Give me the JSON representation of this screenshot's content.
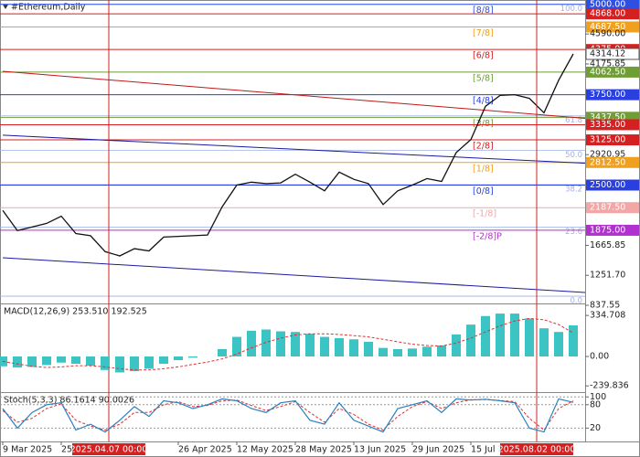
{
  "chart_data": [
    {
      "type": "line",
      "title": "#Ethereum,Daily",
      "x": [
        "2025-03-09",
        "2025-03-13",
        "2025-03-17",
        "2025-03-21",
        "2025-03-25",
        "2025-03-29",
        "2025-04-02",
        "2025-04-06",
        "2025-04-10",
        "2025-04-14",
        "2025-04-18",
        "2025-04-22",
        "2025-04-26",
        "2025-04-30",
        "2025-05-04",
        "2025-05-08",
        "2025-05-12",
        "2025-05-16",
        "2025-05-20",
        "2025-05-24",
        "2025-05-28",
        "2025-06-01",
        "2025-06-05",
        "2025-06-09",
        "2025-06-13",
        "2025-06-17",
        "2025-06-21",
        "2025-06-25",
        "2025-06-29",
        "2025-07-03",
        "2025-07-07",
        "2025-07-11",
        "2025-07-15",
        "2025-07-19",
        "2025-07-23",
        "2025-07-27",
        "2025-07-31",
        "2025-08-04",
        "2025-08-08",
        "2025-08-12"
      ],
      "series": [
        {
          "color": "#111111",
          "values": [
            2150,
            1870,
            1920,
            1970,
            2070,
            1830,
            1800,
            1580,
            1520,
            1620,
            1590,
            1780,
            1790,
            1800,
            1810,
            2200,
            2500,
            2540,
            2520,
            2530,
            2650,
            2540,
            2420,
            2680,
            2580,
            2520,
            2230,
            2420,
            2500,
            2590,
            2550,
            2950,
            3130,
            3590,
            3740,
            3750,
            3700,
            3500,
            3950,
            4314.12
          ]
        }
      ],
      "xlim": [
        "2025-03-09",
        "2025-08-16"
      ],
      "xticks": [
        {
          "value": "2025-03-09",
          "label": "9 Mar 2025"
        },
        {
          "value": "2025-03-25",
          "label": "25"
        },
        {
          "value": "2025-04-26",
          "label": "26 Apr 2025"
        },
        {
          "value": "2025-05-12",
          "label": "12 May 2025"
        },
        {
          "value": "2025-05-28",
          "label": "28 May 2025"
        },
        {
          "value": "2025-06-13",
          "label": "13 Jun 2025"
        },
        {
          "value": "2025-06-29",
          "label": "29 Jun 2025"
        },
        {
          "value": "2025-07-15",
          "label": "15 Jul 2"
        }
      ],
      "markers": [
        {
          "date": "2025-04-07",
          "label": "2025.04.07 00:00",
          "color": "#d42020"
        },
        {
          "date": "2025-08-02",
          "label": "2025.08.02 00:00",
          "color": "#d42020"
        }
      ],
      "ylim": [
        850,
        5060
      ],
      "yticks": [
        {
          "value": 4590,
          "label": "4590.00"
        },
        {
          "value": 4175.85,
          "label": "4175.85"
        },
        {
          "value": 2920.95,
          "label": "2920.95"
        },
        {
          "value": 1665.85,
          "label": "1665.85"
        },
        {
          "value": 1251.7,
          "label": "1251.70"
        },
        {
          "value": 837.55,
          "label": "837.55"
        }
      ],
      "levels": [
        {
          "value": 5000,
          "label": "5000.00",
          "color": "#2f4fe0",
          "murrey": "[8/8]"
        },
        {
          "value": 4868,
          "label": "4868.00",
          "color": "#d42020"
        },
        {
          "value": 4687.5,
          "label": "4687.50",
          "color": "#f0a020",
          "murrey": "[7/8]"
        },
        {
          "value": 4375,
          "label": "4375.00",
          "color": "#d42020",
          "murrey": "[6/8]"
        },
        {
          "value": 4062.5,
          "label": "4062.50",
          "color": "#6e9e34",
          "murrey": "[5/8]"
        },
        {
          "value": 3750,
          "label": "3750.00",
          "color": "#2a3fe0",
          "murrey": "[4/8]"
        },
        {
          "value": 3437.5,
          "label": "3437.50",
          "color": "#6e9e34",
          "murrey": "[3/8]"
        },
        {
          "value": 3335,
          "label": "3335.00",
          "color": "#d42020"
        },
        {
          "value": 3125,
          "label": "3125.00",
          "color": "#d42020",
          "murrey": "[2/8]"
        },
        {
          "value": 2812.5,
          "label": "2812.50",
          "color": "#f0a020",
          "murrey": "[1/8]"
        },
        {
          "value": 2500,
          "label": "2500.00",
          "color": "#2a3fe0",
          "murrey": "[0/8]"
        },
        {
          "value": 2187.5,
          "label": "2187.50",
          "color": "#f2a6a6",
          "murrey": "[-1/8]"
        },
        {
          "value": 1875,
          "label": "1875.00",
          "color": "#b030d0",
          "murrey": "[-2/8]P"
        }
      ],
      "fib": {
        "low": 963,
        "high": 5000,
        "color": "#9fb0e6",
        "levels": [
          {
            "value": 0,
            "label": "0.0"
          },
          23.6,
          38.2,
          {
            "value": 50,
            "label": "50.0"
          },
          61.8,
          {
            "value": 100,
            "label": "100.0"
          }
        ]
      },
      "trendlines": [
        {
          "from": [
            "2025-03-09",
            4074
          ],
          "to": [
            "2025-08-16",
            3420
          ],
          "color": "#c01818"
        },
        {
          "from": [
            "2025-03-09",
            3190
          ],
          "to": [
            "2025-08-16",
            2800
          ],
          "color": "#1a1aa0"
        },
        {
          "from": [
            "2025-03-09",
            1495
          ],
          "to": [
            "2025-08-16",
            1012
          ],
          "color": "#1a1aa0"
        }
      ]
    },
    {
      "type": "macd",
      "title": "MACD(12,26,9) 253.510 192.525",
      "histogram": {
        "color": "#3cc4c4",
        "values": [
          -80,
          -90,
          -85,
          -70,
          -50,
          -60,
          -75,
          -110,
          -130,
          -120,
          -100,
          -60,
          -30,
          -10,
          0,
          60,
          160,
          210,
          220,
          205,
          200,
          185,
          160,
          150,
          140,
          120,
          70,
          60,
          65,
          80,
          90,
          180,
          260,
          330,
          350,
          350,
          310,
          230,
          200,
          253.51
        ]
      },
      "signal": {
        "color": "#e03030",
        "values": [
          -40,
          -60,
          -80,
          -90,
          -85,
          -75,
          -75,
          -85,
          -100,
          -110,
          -110,
          -100,
          -85,
          -65,
          -45,
          -20,
          20,
          70,
          115,
          150,
          175,
          185,
          185,
          180,
          170,
          160,
          140,
          120,
          100,
          90,
          85,
          110,
          150,
          200,
          250,
          290,
          310,
          300,
          260,
          192.525
        ]
      },
      "ylim": [
        -283,
        425
      ],
      "yticks": [
        334.708,
        {
          "value": 0,
          "label": "0.00"
        },
        -239.836
      ]
    },
    {
      "type": "stochastic",
      "title": "Stoch(5,3,3) 86.1614 90.0026",
      "main": {
        "color": "#2a7fc0",
        "values": [
          70,
          20,
          60,
          80,
          85,
          15,
          30,
          10,
          40,
          75,
          50,
          90,
          85,
          70,
          80,
          95,
          90,
          70,
          60,
          85,
          90,
          40,
          30,
          85,
          40,
          25,
          10,
          70,
          80,
          90,
          60,
          95,
          92,
          94,
          90,
          85,
          20,
          10,
          95,
          86.1614
        ]
      },
      "signal": {
        "color": "#e03030",
        "values": [
          65,
          35,
          45,
          70,
          82,
          40,
          25,
          15,
          30,
          60,
          60,
          80,
          88,
          75,
          78,
          90,
          92,
          78,
          65,
          75,
          88,
          60,
          35,
          70,
          55,
          30,
          15,
          50,
          75,
          88,
          70,
          85,
          93,
          93,
          91,
          88,
          45,
          15,
          70,
          90.0026
        ]
      },
      "ylim": [
        -12,
        110
      ],
      "yticks": [
        100,
        80,
        20
      ],
      "grid": true
    }
  ]
}
